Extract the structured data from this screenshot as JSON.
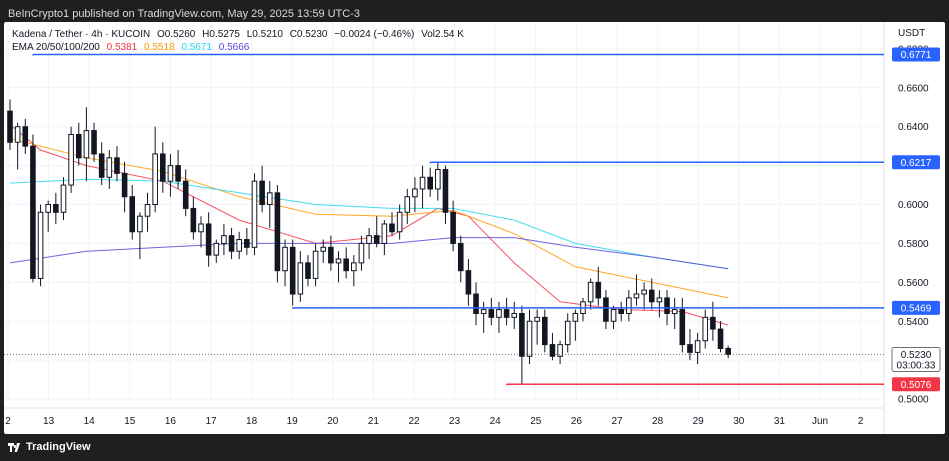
{
  "header": {
    "published_by": "BeInCrypto1 published on TradingView.com, May 29, 2025 13:59 UTC-3"
  },
  "legend": {
    "symbol": "Kadena / Tether · 4h · KUCOIN",
    "open": "O0.5260",
    "high": "H0.5275",
    "low": "L0.5210",
    "close": "C0.5230",
    "change": "−0.0024 (−0.46%)",
    "volume": "Vol2.54 K",
    "ema_label": "EMA 20/50/100/200",
    "ema_values": [
      {
        "value": "0.5381",
        "color": "#f23645"
      },
      {
        "value": "0.5518",
        "color": "#ff9800"
      },
      {
        "value": "0.5671",
        "color": "#26d7e8"
      },
      {
        "value": "0.5666",
        "color": "#5b48d8"
      }
    ]
  },
  "footer": {
    "brand": "TradingView"
  },
  "chart_data": {
    "type": "candlestick",
    "currency": "USDT",
    "x_ticks": [
      "2",
      "13",
      "14",
      "15",
      "16",
      "17",
      "18",
      "19",
      "20",
      "21",
      "22",
      "23",
      "24",
      "25",
      "26",
      "27",
      "28",
      "29",
      "30",
      "31",
      "Jun",
      "2"
    ],
    "y_ticks": [
      "0.5000",
      "0.5200",
      "0.5400",
      "0.5600",
      "0.5800",
      "0.6000",
      "0.6200",
      "0.6400",
      "0.6600",
      "0.6800"
    ],
    "ylim": [
      0.4985,
      0.6825
    ],
    "candles": [
      [
        0.648,
        0.654,
        0.628,
        0.632
      ],
      [
        0.632,
        0.642,
        0.618,
        0.64
      ],
      [
        0.64,
        0.644,
        0.626,
        0.63
      ],
      [
        0.63,
        0.636,
        0.56,
        0.562
      ],
      [
        0.562,
        0.6,
        0.558,
        0.596
      ],
      [
        0.596,
        0.602,
        0.586,
        0.6
      ],
      [
        0.6,
        0.606,
        0.59,
        0.596
      ],
      [
        0.596,
        0.614,
        0.592,
        0.61
      ],
      [
        0.61,
        0.64,
        0.606,
        0.636
      ],
      [
        0.636,
        0.642,
        0.62,
        0.624
      ],
      [
        0.624,
        0.65,
        0.612,
        0.638
      ],
      [
        0.638,
        0.642,
        0.622,
        0.626
      ],
      [
        0.626,
        0.632,
        0.61,
        0.614
      ],
      [
        0.614,
        0.628,
        0.608,
        0.624
      ],
      [
        0.624,
        0.63,
        0.612,
        0.616
      ],
      [
        0.616,
        0.622,
        0.596,
        0.604
      ],
      [
        0.604,
        0.61,
        0.582,
        0.586
      ],
      [
        0.586,
        0.596,
        0.572,
        0.594
      ],
      [
        0.594,
        0.606,
        0.586,
        0.6
      ],
      [
        0.6,
        0.64,
        0.596,
        0.626
      ],
      [
        0.626,
        0.632,
        0.606,
        0.612
      ],
      [
        0.612,
        0.626,
        0.604,
        0.62
      ],
      [
        0.62,
        0.628,
        0.608,
        0.612
      ],
      [
        0.612,
        0.618,
        0.594,
        0.598
      ],
      [
        0.598,
        0.604,
        0.582,
        0.586
      ],
      [
        0.586,
        0.594,
        0.578,
        0.59
      ],
      [
        0.59,
        0.596,
        0.568,
        0.574
      ],
      [
        0.574,
        0.582,
        0.57,
        0.58
      ],
      [
        0.58,
        0.59,
        0.574,
        0.584
      ],
      [
        0.584,
        0.588,
        0.572,
        0.576
      ],
      [
        0.576,
        0.586,
        0.572,
        0.582
      ],
      [
        0.582,
        0.588,
        0.574,
        0.578
      ],
      [
        0.578,
        0.616,
        0.574,
        0.612
      ],
      [
        0.612,
        0.62,
        0.596,
        0.6
      ],
      [
        0.6,
        0.612,
        0.588,
        0.606
      ],
      [
        0.606,
        0.61,
        0.56,
        0.566
      ],
      [
        0.566,
        0.582,
        0.558,
        0.578
      ],
      [
        0.578,
        0.582,
        0.548,
        0.554
      ],
      [
        0.554,
        0.576,
        0.55,
        0.57
      ],
      [
        0.57,
        0.574,
        0.558,
        0.562
      ],
      [
        0.562,
        0.58,
        0.558,
        0.576
      ],
      [
        0.576,
        0.582,
        0.57,
        0.578
      ],
      [
        0.578,
        0.584,
        0.566,
        0.57
      ],
      [
        0.57,
        0.576,
        0.56,
        0.572
      ],
      [
        0.572,
        0.578,
        0.562,
        0.566
      ],
      [
        0.566,
        0.574,
        0.558,
        0.57
      ],
      [
        0.57,
        0.584,
        0.566,
        0.58
      ],
      [
        0.58,
        0.588,
        0.572,
        0.584
      ],
      [
        0.584,
        0.594,
        0.578,
        0.58
      ],
      [
        0.58,
        0.592,
        0.574,
        0.59
      ],
      [
        0.59,
        0.596,
        0.584,
        0.586
      ],
      [
        0.586,
        0.6,
        0.582,
        0.596
      ],
      [
        0.596,
        0.608,
        0.59,
        0.604
      ],
      [
        0.604,
        0.614,
        0.596,
        0.608
      ],
      [
        0.608,
        0.62,
        0.598,
        0.614
      ],
      [
        0.614,
        0.619,
        0.604,
        0.608
      ],
      [
        0.608,
        0.622,
        0.602,
        0.618
      ],
      [
        0.618,
        0.62,
        0.59,
        0.596
      ],
      [
        0.596,
        0.602,
        0.576,
        0.58
      ],
      [
        0.58,
        0.584,
        0.56,
        0.566
      ],
      [
        0.566,
        0.572,
        0.548,
        0.554
      ],
      [
        0.554,
        0.56,
        0.538,
        0.544
      ],
      [
        0.544,
        0.55,
        0.534,
        0.546
      ],
      [
        0.546,
        0.552,
        0.538,
        0.542
      ],
      [
        0.542,
        0.55,
        0.534,
        0.546
      ],
      [
        0.546,
        0.552,
        0.538,
        0.542
      ],
      [
        0.542,
        0.55,
        0.536,
        0.544
      ],
      [
        0.544,
        0.548,
        0.508,
        0.522
      ],
      [
        0.522,
        0.546,
        0.518,
        0.54
      ],
      [
        0.54,
        0.546,
        0.528,
        0.542
      ],
      [
        0.542,
        0.546,
        0.524,
        0.528
      ],
      [
        0.528,
        0.534,
        0.52,
        0.522
      ],
      [
        0.522,
        0.53,
        0.518,
        0.528
      ],
      [
        0.528,
        0.544,
        0.524,
        0.54
      ],
      [
        0.54,
        0.546,
        0.53,
        0.544
      ],
      [
        0.544,
        0.552,
        0.54,
        0.55
      ],
      [
        0.55,
        0.562,
        0.546,
        0.56
      ],
      [
        0.56,
        0.568,
        0.548,
        0.552
      ],
      [
        0.552,
        0.556,
        0.536,
        0.54
      ],
      [
        0.54,
        0.548,
        0.536,
        0.546
      ],
      [
        0.546,
        0.55,
        0.54,
        0.544
      ],
      [
        0.544,
        0.556,
        0.54,
        0.552
      ],
      [
        0.552,
        0.564,
        0.548,
        0.554
      ],
      [
        0.554,
        0.56,
        0.546,
        0.556
      ],
      [
        0.556,
        0.562,
        0.546,
        0.55
      ],
      [
        0.55,
        0.556,
        0.542,
        0.552
      ],
      [
        0.552,
        0.556,
        0.538,
        0.544
      ],
      [
        0.544,
        0.552,
        0.536,
        0.546
      ],
      [
        0.546,
        0.552,
        0.524,
        0.528
      ],
      [
        0.528,
        0.536,
        0.52,
        0.524
      ],
      [
        0.524,
        0.534,
        0.518,
        0.53
      ],
      [
        0.53,
        0.546,
        0.526,
        0.542
      ],
      [
        0.542,
        0.55,
        0.53,
        0.536
      ],
      [
        0.536,
        0.54,
        0.524,
        0.526
      ],
      [
        0.526,
        0.5275,
        0.521,
        0.523
      ]
    ],
    "ema": [
      {
        "name": "EMA 20",
        "color": "#f23645",
        "points": [
          [
            0,
            0.641
          ],
          [
            4,
            0.628
          ],
          [
            10,
            0.62
          ],
          [
            20,
            0.612
          ],
          [
            30,
            0.592
          ],
          [
            40,
            0.58
          ],
          [
            50,
            0.584
          ],
          [
            56,
            0.598
          ],
          [
            60,
            0.594
          ],
          [
            66,
            0.57
          ],
          [
            72,
            0.55
          ],
          [
            80,
            0.546
          ],
          [
            88,
            0.545
          ],
          [
            94,
            0.538
          ]
        ]
      },
      {
        "name": "EMA 50",
        "color": "#ff9800",
        "points": [
          [
            0,
            0.634
          ],
          [
            10,
            0.624
          ],
          [
            20,
            0.617
          ],
          [
            30,
            0.604
          ],
          [
            40,
            0.595
          ],
          [
            50,
            0.594
          ],
          [
            58,
            0.597
          ],
          [
            66,
            0.585
          ],
          [
            74,
            0.568
          ],
          [
            84,
            0.56
          ],
          [
            94,
            0.552
          ]
        ]
      },
      {
        "name": "EMA 100",
        "color": "#26d7e8",
        "points": [
          [
            0,
            0.611
          ],
          [
            10,
            0.613
          ],
          [
            20,
            0.612
          ],
          [
            30,
            0.606
          ],
          [
            40,
            0.6
          ],
          [
            50,
            0.598
          ],
          [
            58,
            0.598
          ],
          [
            66,
            0.592
          ],
          [
            74,
            0.58
          ],
          [
            84,
            0.573
          ],
          [
            94,
            0.567
          ]
        ]
      },
      {
        "name": "EMA 200",
        "color": "#5b48d8",
        "points": [
          [
            0,
            0.57
          ],
          [
            10,
            0.576
          ],
          [
            20,
            0.578
          ],
          [
            30,
            0.58
          ],
          [
            40,
            0.58
          ],
          [
            50,
            0.58
          ],
          [
            58,
            0.583
          ],
          [
            66,
            0.583
          ],
          [
            74,
            0.578
          ],
          [
            84,
            0.573
          ],
          [
            94,
            0.567
          ]
        ]
      }
    ],
    "levels": [
      {
        "value": 0.6771,
        "label": "0.6771",
        "color": "#2962ff",
        "from": 3
      },
      {
        "value": 0.6217,
        "label": "0.6217",
        "color": "#2962ff",
        "from": 55
      },
      {
        "value": 0.5469,
        "label": "0.5469",
        "color": "#2962ff",
        "from": 37
      },
      {
        "value": 0.5076,
        "label": "0.5076",
        "color": "#f23645",
        "from": 65
      }
    ],
    "current_price": {
      "value": 0.523,
      "label": "0.5230",
      "countdown": "03:00:33"
    }
  }
}
